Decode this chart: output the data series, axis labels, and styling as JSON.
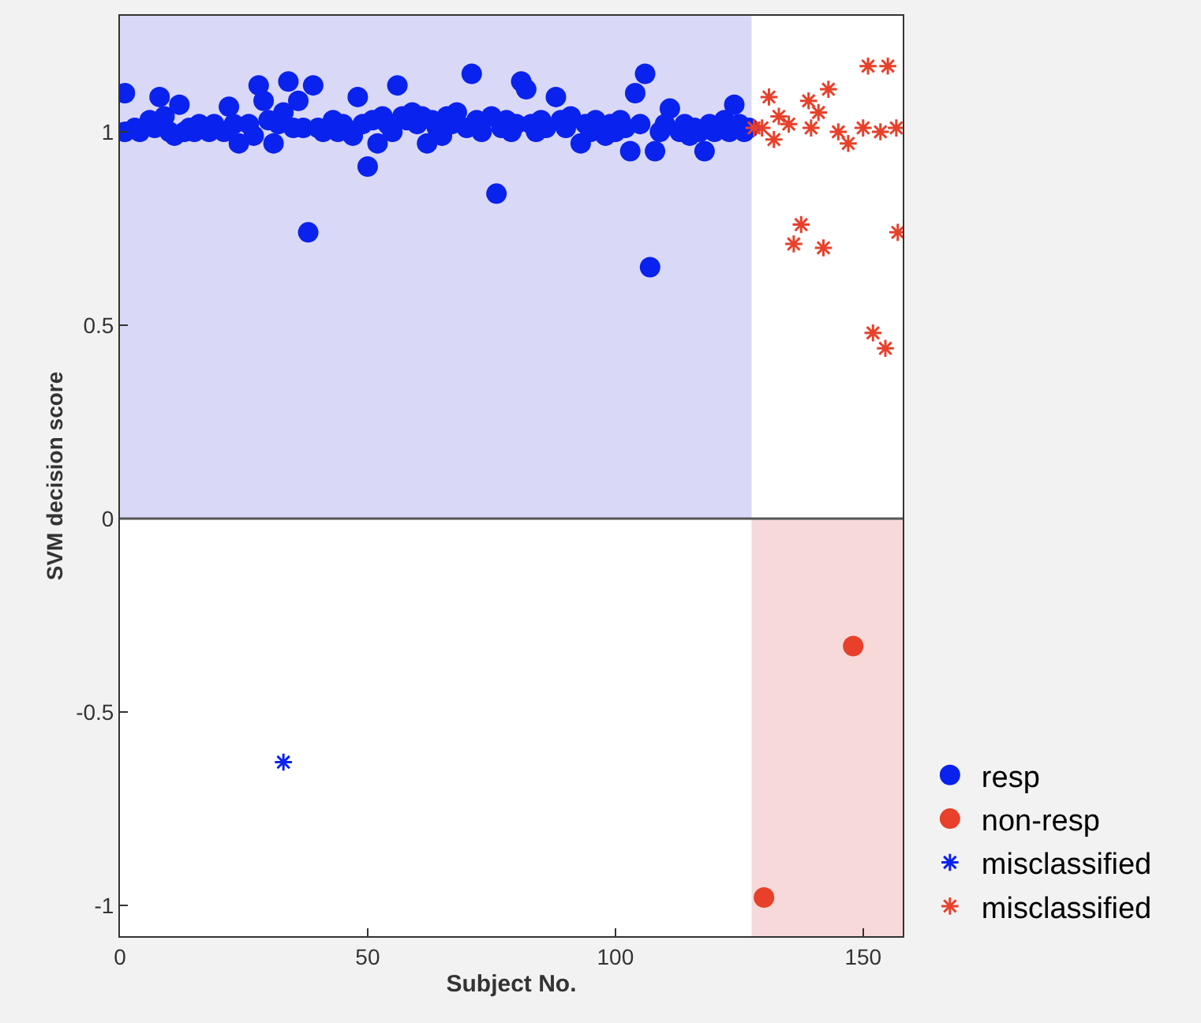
{
  "chart_data": {
    "type": "scatter",
    "xlabel": "Subject No.",
    "ylabel": "SVM decision score",
    "xlim": [
      0,
      158
    ],
    "ylim": [
      -1.08,
      1.3
    ],
    "xticks": [
      0,
      50,
      100,
      150
    ],
    "yticks": [
      -1,
      -0.5,
      0,
      0.5,
      1
    ],
    "grid": false,
    "legend": "bottom right",
    "bands": [
      {
        "axis": "x",
        "from": 0,
        "to": 127.5,
        "color": "#d9d9f7"
      },
      {
        "axis": "x",
        "from": 127.5,
        "to": 158,
        "color": "#f7d9d9"
      }
    ],
    "ref_lines": [
      {
        "axis": "y",
        "value": 0,
        "color": "#555555"
      }
    ],
    "series": [
      {
        "name": "resp",
        "color": "#0a22ee",
        "marker": "circle",
        "x": [
          1,
          1,
          2,
          3,
          4,
          5,
          6,
          7,
          8,
          9,
          10,
          11,
          12,
          13,
          14,
          15,
          16,
          17,
          18,
          19,
          20,
          21,
          22,
          23,
          24,
          25,
          26,
          27,
          28,
          29,
          30,
          31,
          32,
          33,
          34,
          35,
          36,
          37,
          38,
          39,
          40,
          41,
          42,
          43,
          44,
          45,
          46,
          47,
          48,
          49,
          50,
          51,
          52,
          53,
          54,
          55,
          56,
          57,
          58,
          59,
          60,
          61,
          62,
          63,
          64,
          65,
          66,
          67,
          68,
          69,
          70,
          71,
          72,
          73,
          74,
          75,
          76,
          77,
          78,
          79,
          80,
          81,
          82,
          83,
          84,
          85,
          86,
          87,
          88,
          89,
          90,
          91,
          92,
          93,
          94,
          95,
          96,
          97,
          98,
          99,
          100,
          101,
          102,
          103,
          104,
          105,
          106,
          107,
          108,
          109,
          110,
          111,
          112,
          113,
          114,
          115,
          116,
          117,
          118,
          119,
          120,
          121,
          122,
          123,
          124,
          125,
          126,
          127
        ],
        "values": [
          1.1,
          1.0,
          null,
          1.01,
          1.0,
          null,
          1.03,
          1.01,
          1.09,
          1.04,
          1.0,
          0.99,
          1.07,
          1.0,
          1.01,
          1.0,
          1.02,
          null,
          1.0,
          1.02,
          null,
          1.0,
          1.065,
          1.02,
          0.97,
          null,
          1.02,
          0.99,
          1.12,
          1.08,
          1.03,
          0.97,
          1.02,
          1.05,
          1.13,
          1.01,
          1.08,
          1.01,
          0.74,
          1.12,
          1.01,
          1.0,
          null,
          1.03,
          1.0,
          1.02,
          null,
          0.99,
          1.09,
          1.02,
          0.91,
          1.03,
          0.97,
          1.04,
          1.02,
          1.0,
          1.12,
          1.04,
          1.03,
          1.05,
          1.02,
          1.04,
          0.97,
          1.03,
          1.01,
          0.99,
          1.04,
          1.02,
          1.05,
          null,
          1.01,
          1.15,
          1.03,
          1.0,
          null,
          1.04,
          0.84,
          1.01,
          1.03,
          1.0,
          1.02,
          1.13,
          1.11,
          1.02,
          1.0,
          1.03,
          1.01,
          null,
          1.09,
          1.03,
          1.01,
          1.04,
          null,
          0.97,
          1.02,
          1.0,
          1.03,
          null,
          0.99,
          1.02,
          1.0,
          1.03,
          1.01,
          0.95,
          1.1,
          1.02,
          1.15,
          0.65,
          0.95,
          1.0,
          1.02,
          1.06,
          null,
          1.0,
          1.02,
          0.99,
          1.01,
          1.0,
          0.95,
          1.02,
          1.0,
          null,
          1.03,
          1.0,
          1.07,
          1.02,
          1.0,
          1.01
        ]
      },
      {
        "name": "non-resp",
        "color": "#e8402a",
        "marker": "circle",
        "x": [
          130,
          148
        ],
        "values": [
          -0.98,
          -0.33
        ]
      },
      {
        "name": "misclassified",
        "color": "#0a22ee",
        "marker": "cross",
        "x": [
          33
        ],
        "values": [
          -0.63
        ]
      },
      {
        "name": "misclassified",
        "color": "#e8402a",
        "marker": "cross",
        "x": [
          128,
          129.6,
          131,
          132,
          133,
          134,
          135,
          136,
          137.5,
          139,
          139.5,
          141,
          142,
          143,
          145,
          147,
          150,
          151,
          152,
          153.5,
          154.5,
          155,
          156.7,
          157
        ],
        "values": [
          1.01,
          1.01,
          1.09,
          0.98,
          1.04,
          null,
          1.02,
          0.71,
          0.76,
          1.08,
          1.01,
          1.05,
          0.7,
          1.11,
          1.0,
          0.97,
          1.01,
          1.17,
          0.48,
          1.0,
          0.44,
          1.17,
          1.01,
          0.74
        ]
      }
    ]
  }
}
